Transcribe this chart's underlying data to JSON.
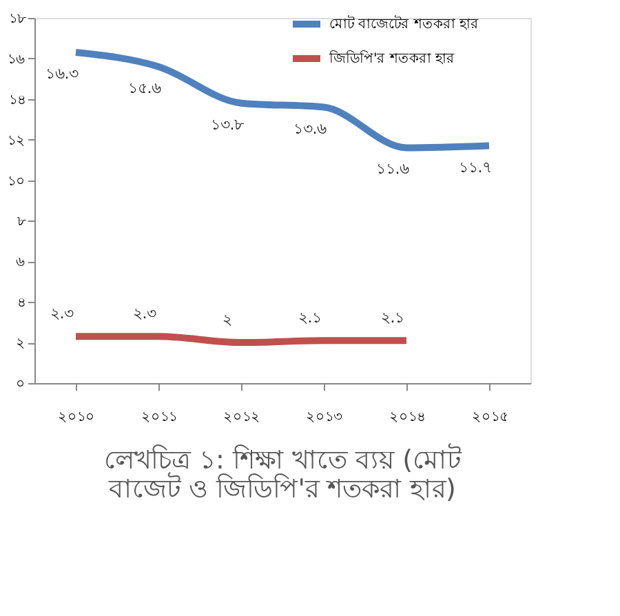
{
  "chart_data": {
    "type": "line",
    "title": "লেখচিত্র ১: শিক্ষা খাতে ব্যয় (মোট বাজেট ও জিডিপি'র শতকরা হার)",
    "categories": [
      "২০১০",
      "২০১১",
      "২০১২",
      "২০১৩",
      "২০১৪",
      "২০১৫"
    ],
    "series": [
      {
        "name": "মোট বাজেটের শতকরা হার",
        "color": "#4f81bd",
        "values": [
          16.3,
          15.6,
          13.8,
          13.6,
          11.6,
          11.7
        ],
        "value_labels": [
          "১৬.৩",
          "১৫.৬",
          "১৩.৮",
          "১৩.৬",
          "১১.৬",
          "১১.৭"
        ]
      },
      {
        "name": "জিডিপি'র শতকরা হার",
        "color": "#c0504d",
        "values": [
          2.3,
          2.3,
          2,
          2.1,
          2.1,
          null
        ],
        "value_labels": [
          "২.৩",
          "২.৩",
          "২",
          "২.১",
          "২.১",
          null
        ]
      }
    ],
    "ylim": [
      0,
      18
    ],
    "yticks": [
      {
        "value": 0,
        "label": "০"
      },
      {
        "value": 2,
        "label": "২"
      },
      {
        "value": 4,
        "label": "৪"
      },
      {
        "value": 6,
        "label": "৬"
      },
      {
        "value": 8,
        "label": "৮"
      },
      {
        "value": 10,
        "label": "১০"
      },
      {
        "value": 12,
        "label": "১২"
      },
      {
        "value": 14,
        "label": "১৪"
      },
      {
        "value": 16,
        "label": "১৬"
      },
      {
        "value": 18,
        "label": "১৮"
      }
    ],
    "grid": false,
    "legend": "top right",
    "marker": "none",
    "line_style": "solid"
  }
}
